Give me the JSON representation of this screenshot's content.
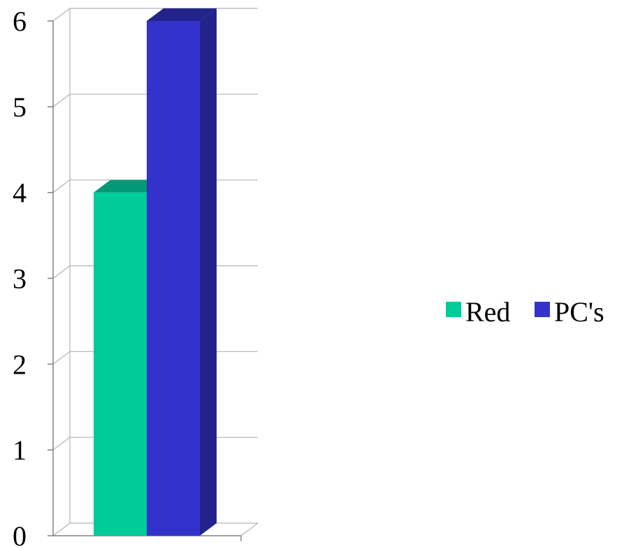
{
  "chart_data": {
    "type": "bar",
    "variant": "3d-clustered-column",
    "categories": [
      ""
    ],
    "series": [
      {
        "name": "Red",
        "values": [
          4
        ],
        "color": "#00CC99",
        "top_color": "#009A74"
      },
      {
        "name": "PC's",
        "values": [
          6
        ],
        "color": "#3333CC",
        "top_color": "#23238C",
        "side_color": "#23238C"
      }
    ],
    "title": "",
    "xlabel": "",
    "ylabel": "",
    "ylim": [
      0,
      6
    ],
    "yticks": [
      "0",
      "1",
      "2",
      "3",
      "4",
      "5",
      "6"
    ],
    "grid": true,
    "grid_color": "#B3B3B3",
    "legend_position": "right"
  }
}
